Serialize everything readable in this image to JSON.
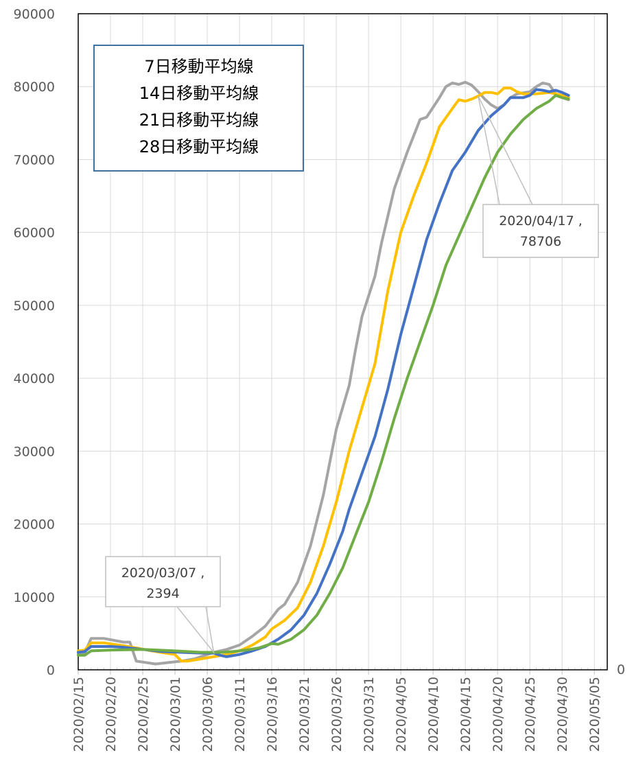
{
  "chart_data": {
    "type": "line",
    "x_start": "2020/02/15",
    "x_end": "2020/05/07",
    "x_tick_labels": [
      "2020/02/15",
      "2020/02/20",
      "2020/02/25",
      "2020/03/01",
      "2020/03/06",
      "2020/03/11",
      "2020/03/16",
      "2020/03/21",
      "2020/03/26",
      "2020/03/31",
      "2020/04/05",
      "2020/04/10",
      "2020/04/15",
      "2020/04/20",
      "2020/04/25",
      "2020/04/30",
      "2020/05/05"
    ],
    "y_ticks": [
      0,
      10000,
      20000,
      30000,
      40000,
      50000,
      60000,
      70000,
      80000,
      90000
    ],
    "y_tick_labels": [
      "0",
      "10000",
      "20000",
      "30000",
      "40000",
      "50000",
      "60000",
      "70000",
      "80000",
      "90000"
    ],
    "ylim": [
      0,
      90000
    ],
    "right_axis_label": "0",
    "grid": true,
    "legend": {
      "position": "top-left",
      "entries": [
        "7日移動平均線",
        "14日移動平均線",
        "21日移動平均線",
        "28日移動平均線"
      ]
    },
    "series": [
      {
        "name": "7日移動平均線",
        "color": "#a5a5a5",
        "points": [
          [
            "2020/02/15",
            2200
          ],
          [
            "2020/02/16",
            2300
          ],
          [
            "2020/02/17",
            4300
          ],
          [
            "2020/02/19",
            4300
          ],
          [
            "2020/02/22",
            3800
          ],
          [
            "2020/02/23",
            3800
          ],
          [
            "2020/02/24",
            1200
          ],
          [
            "2020/02/27",
            800
          ],
          [
            "2020/02/29",
            1000
          ],
          [
            "2020/03/02",
            1200
          ],
          [
            "2020/03/04",
            1500
          ],
          [
            "2020/03/07",
            2394
          ],
          [
            "2020/03/09",
            2800
          ],
          [
            "2020/03/11",
            3400
          ],
          [
            "2020/03/13",
            4600
          ],
          [
            "2020/03/15",
            6000
          ],
          [
            "2020/03/17",
            8300
          ],
          [
            "2020/03/18",
            9000
          ],
          [
            "2020/03/20",
            12000
          ],
          [
            "2020/03/22",
            17000
          ],
          [
            "2020/03/24",
            24000
          ],
          [
            "2020/03/26",
            33000
          ],
          [
            "2020/03/28",
            39000
          ],
          [
            "2020/03/29",
            44000
          ],
          [
            "2020/03/30",
            48500
          ],
          [
            "2020/04/01",
            54000
          ],
          [
            "2020/04/02",
            58500
          ],
          [
            "2020/04/04",
            66000
          ],
          [
            "2020/04/06",
            71000
          ],
          [
            "2020/04/08",
            75500
          ],
          [
            "2020/04/09",
            75800
          ],
          [
            "2020/04/11",
            78500
          ],
          [
            "2020/04/12",
            80000
          ],
          [
            "2020/04/13",
            80500
          ],
          [
            "2020/04/14",
            80300
          ],
          [
            "2020/04/15",
            80600
          ],
          [
            "2020/04/16",
            80200
          ],
          [
            "2020/04/17",
            79300
          ],
          [
            "2020/04/18",
            78300
          ],
          [
            "2020/04/19",
            77500
          ],
          [
            "2020/04/20",
            77000
          ],
          [
            "2020/04/21",
            77500
          ],
          [
            "2020/04/22",
            78500
          ],
          [
            "2020/04/23",
            79000
          ],
          [
            "2020/04/25",
            79300
          ],
          [
            "2020/04/26",
            80000
          ],
          [
            "2020/04/27",
            80500
          ],
          [
            "2020/04/28",
            80300
          ],
          [
            "2020/04/29",
            79000
          ],
          [
            "2020/04/30",
            78500
          ],
          [
            "2020/05/01",
            78200
          ]
        ]
      },
      {
        "name": "14日移動平均線",
        "color": "#ffc000",
        "points": [
          [
            "2020/02/15",
            2600
          ],
          [
            "2020/02/16",
            2700
          ],
          [
            "2020/02/17",
            3700
          ],
          [
            "2020/02/19",
            3700
          ],
          [
            "2020/02/22",
            3300
          ],
          [
            "2020/02/24",
            3000
          ],
          [
            "2020/02/27",
            2500
          ],
          [
            "2020/03/01",
            2100
          ],
          [
            "2020/03/02",
            1200
          ],
          [
            "2020/03/03",
            1200
          ],
          [
            "2020/03/05",
            1500
          ],
          [
            "2020/03/07",
            1800
          ],
          [
            "2020/03/09",
            2100
          ],
          [
            "2020/03/11",
            2600
          ],
          [
            "2020/03/13",
            3400
          ],
          [
            "2020/03/15",
            4500
          ],
          [
            "2020/03/16",
            5600
          ],
          [
            "2020/03/18",
            6800
          ],
          [
            "2020/03/20",
            8500
          ],
          [
            "2020/03/22",
            12000
          ],
          [
            "2020/03/24",
            17000
          ],
          [
            "2020/03/26",
            23000
          ],
          [
            "2020/03/28",
            30000
          ],
          [
            "2020/03/30",
            36000
          ],
          [
            "2020/04/01",
            42000
          ],
          [
            "2020/04/03",
            52000
          ],
          [
            "2020/04/05",
            60000
          ],
          [
            "2020/04/07",
            65000
          ],
          [
            "2020/04/09",
            69500
          ],
          [
            "2020/04/11",
            74500
          ],
          [
            "2020/04/13",
            77000
          ],
          [
            "2020/04/14",
            78200
          ],
          [
            "2020/04/15",
            78000
          ],
          [
            "2020/04/16",
            78300
          ],
          [
            "2020/04/17",
            78706
          ],
          [
            "2020/04/18",
            79200
          ],
          [
            "2020/04/19",
            79200
          ],
          [
            "2020/04/20",
            79000
          ],
          [
            "2020/04/21",
            79800
          ],
          [
            "2020/04/22",
            79800
          ],
          [
            "2020/04/23",
            79300
          ],
          [
            "2020/04/24",
            79000
          ],
          [
            "2020/04/26",
            79000
          ],
          [
            "2020/04/28",
            79200
          ],
          [
            "2020/04/29",
            79000
          ],
          [
            "2020/04/30",
            78800
          ],
          [
            "2020/05/01",
            78500
          ]
        ]
      },
      {
        "name": "21日移動平均線",
        "color": "#4472c4",
        "points": [
          [
            "2020/02/15",
            2400
          ],
          [
            "2020/02/16",
            2500
          ],
          [
            "2020/02/17",
            3200
          ],
          [
            "2020/02/20",
            3200
          ],
          [
            "2020/02/22",
            3100
          ],
          [
            "2020/02/25",
            2800
          ],
          [
            "2020/02/28",
            2500
          ],
          [
            "2020/03/02",
            2400
          ],
          [
            "2020/03/05",
            2300
          ],
          [
            "2020/03/07",
            2300
          ],
          [
            "2020/03/08",
            2000
          ],
          [
            "2020/03/09",
            1800
          ],
          [
            "2020/03/11",
            2100
          ],
          [
            "2020/03/13",
            2600
          ],
          [
            "2020/03/15",
            3200
          ],
          [
            "2020/03/17",
            4200
          ],
          [
            "2020/03/19",
            5500
          ],
          [
            "2020/03/21",
            7500
          ],
          [
            "2020/03/23",
            10500
          ],
          [
            "2020/03/25",
            14500
          ],
          [
            "2020/03/27",
            19000
          ],
          [
            "2020/03/28",
            22000
          ],
          [
            "2020/03/30",
            27000
          ],
          [
            "2020/04/01",
            32000
          ],
          [
            "2020/04/03",
            38500
          ],
          [
            "2020/04/05",
            46000
          ],
          [
            "2020/04/07",
            52500
          ],
          [
            "2020/04/09",
            59000
          ],
          [
            "2020/04/11",
            64000
          ],
          [
            "2020/04/13",
            68500
          ],
          [
            "2020/04/15",
            71000
          ],
          [
            "2020/04/17",
            74000
          ],
          [
            "2020/04/19",
            76000
          ],
          [
            "2020/04/21",
            77500
          ],
          [
            "2020/04/22",
            78500
          ],
          [
            "2020/04/24",
            78500
          ],
          [
            "2020/04/25",
            78800
          ],
          [
            "2020/04/26",
            79600
          ],
          [
            "2020/04/27",
            79500
          ],
          [
            "2020/04/28",
            79300
          ],
          [
            "2020/04/29",
            79500
          ],
          [
            "2020/04/30",
            79200
          ],
          [
            "2020/05/01",
            78800
          ]
        ]
      },
      {
        "name": "28日移動平均線",
        "color": "#70ad47",
        "points": [
          [
            "2020/02/15",
            2000
          ],
          [
            "2020/02/16",
            2000
          ],
          [
            "2020/02/17",
            2600
          ],
          [
            "2020/02/20",
            2700
          ],
          [
            "2020/02/25",
            2800
          ],
          [
            "2020/03/01",
            2600
          ],
          [
            "2020/03/05",
            2400
          ],
          [
            "2020/03/08",
            2400
          ],
          [
            "2020/03/10",
            2500
          ],
          [
            "2020/03/12",
            2700
          ],
          [
            "2020/03/14",
            3000
          ],
          [
            "2020/03/16",
            3600
          ],
          [
            "2020/03/17",
            3500
          ],
          [
            "2020/03/19",
            4200
          ],
          [
            "2020/03/21",
            5500
          ],
          [
            "2020/03/23",
            7500
          ],
          [
            "2020/03/25",
            10500
          ],
          [
            "2020/03/27",
            14000
          ],
          [
            "2020/03/29",
            18500
          ],
          [
            "2020/03/31",
            23000
          ],
          [
            "2020/04/02",
            28500
          ],
          [
            "2020/04/04",
            34500
          ],
          [
            "2020/04/06",
            40000
          ],
          [
            "2020/04/08",
            45000
          ],
          [
            "2020/04/10",
            50000
          ],
          [
            "2020/04/12",
            55500
          ],
          [
            "2020/04/14",
            59500
          ],
          [
            "2020/04/16",
            63500
          ],
          [
            "2020/04/18",
            67500
          ],
          [
            "2020/04/20",
            71000
          ],
          [
            "2020/04/22",
            73500
          ],
          [
            "2020/04/24",
            75500
          ],
          [
            "2020/04/26",
            77000
          ],
          [
            "2020/04/28",
            78000
          ],
          [
            "2020/04/29",
            78800
          ],
          [
            "2020/04/30",
            78500
          ],
          [
            "2020/05/01",
            78300
          ]
        ]
      }
    ],
    "annotations": [
      {
        "text_line1": "2020/03/07 ,",
        "text_line2": "2394",
        "x": "2020/03/07",
        "y": 2394
      },
      {
        "text_line1": "2020/04/17 ,",
        "text_line2": "78706",
        "x": "2020/04/17",
        "y": 78706
      }
    ]
  }
}
